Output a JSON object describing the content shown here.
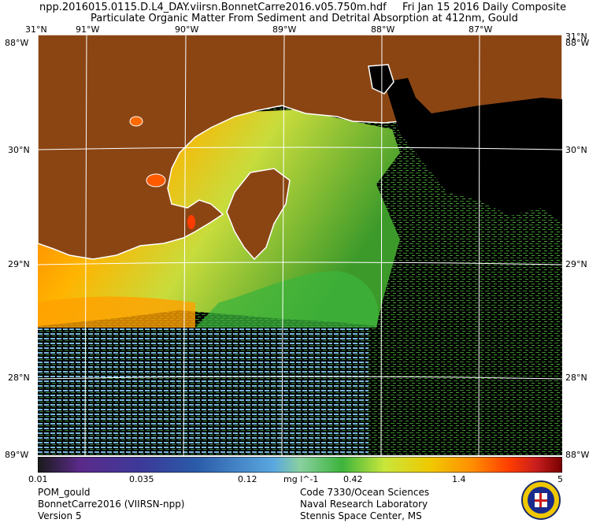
{
  "header": {
    "file_name": "npp.2016015.0115.D.L4_DAY.viirsn.BonnetCarre2016.v05.750m.hdf",
    "date_label": "Fri Jan 15 2016 Daily Composite",
    "subtitle": "Particulate Organic Matter From Sediment and Detrital Absorption at 412nm, Gould"
  },
  "map": {
    "lon_labels": [
      "91°W",
      "90°W",
      "89°W",
      "88°W",
      "87°W"
    ],
    "lat_labels": [
      "30°N",
      "29°N",
      "28°N"
    ],
    "corner_labels": {
      "top_left_lat": "31°N",
      "top_right_lat": "31°N",
      "top_left_lon": "88°W",
      "top_right_lon": "88°W",
      "bottom_left": "89°W",
      "bottom_right": "88°W"
    },
    "colors": {
      "land": "#8b4513",
      "no_data": "#000000",
      "coastline": "#ffffff"
    }
  },
  "colorbar": {
    "ticks": [
      "0.01",
      "0.035",
      "0.12",
      "mg l^-1",
      "0.42",
      "1.4",
      "5"
    ],
    "colors": [
      "#1a1a1a",
      "#5a2a8a",
      "#3c3a9a",
      "#2a5aa8",
      "#5aa8e0",
      "#8ad0a0",
      "#3cb43c",
      "#c8e63c",
      "#f0c800",
      "#ff8c00",
      "#ff3c00",
      "#c81e1e",
      "#780000"
    ]
  },
  "footer": {
    "left": [
      "POM_gould",
      "BonnetCarre2016 (VIIRSN-npp)",
      "Version 5"
    ],
    "right": [
      "Code 7330/Ocean Sciences",
      "Naval Research Laboratory",
      "Stennis Space Center, MS"
    ]
  }
}
